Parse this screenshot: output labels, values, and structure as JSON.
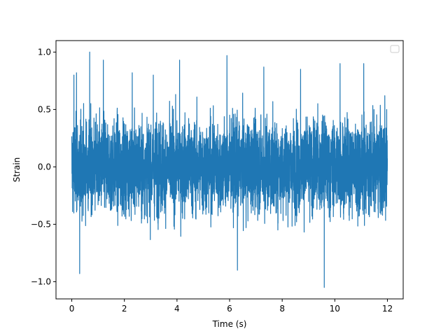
{
  "chart_data": {
    "type": "line",
    "title": "",
    "xlabel": "Time (s)",
    "ylabel": "Strain",
    "xlim": [
      -0.6,
      12.6
    ],
    "ylim": [
      -1.15,
      1.1
    ],
    "x_ticks": [
      0,
      2,
      4,
      6,
      8,
      10,
      12
    ],
    "x_tick_labels": [
      "0",
      "2",
      "4",
      "6",
      "8",
      "10",
      "12"
    ],
    "y_ticks": [
      -1.0,
      -0.5,
      0.0,
      0.5,
      1.0
    ],
    "y_tick_labels": [
      "−1.0",
      "−0.5",
      "0.0",
      "0.5",
      "1.0"
    ],
    "grid": false,
    "legend": {
      "placement": "top-right",
      "entries": []
    },
    "series": [
      {
        "color": "#1f77b4",
        "x_range": [
          0,
          12
        ],
        "description_of_signal": "dense noise, typical band -0.5 to 0.5",
        "peaks": [
          {
            "x": 0.08,
            "y": 0.8
          },
          {
            "x": 0.18,
            "y": 0.82
          },
          {
            "x": 0.3,
            "y": -0.93
          },
          {
            "x": 0.68,
            "y": 1.0
          },
          {
            "x": 1.2,
            "y": 0.93
          },
          {
            "x": 2.3,
            "y": 0.82
          },
          {
            "x": 3.1,
            "y": 0.8
          },
          {
            "x": 4.1,
            "y": 0.93
          },
          {
            "x": 5.9,
            "y": 0.97
          },
          {
            "x": 6.3,
            "y": -0.9
          },
          {
            "x": 7.3,
            "y": 0.87
          },
          {
            "x": 8.7,
            "y": 0.85
          },
          {
            "x": 9.6,
            "y": -1.05
          },
          {
            "x": 10.2,
            "y": 0.9
          },
          {
            "x": 11.1,
            "y": 0.9
          },
          {
            "x": 11.9,
            "y": 0.62
          }
        ]
      }
    ]
  }
}
